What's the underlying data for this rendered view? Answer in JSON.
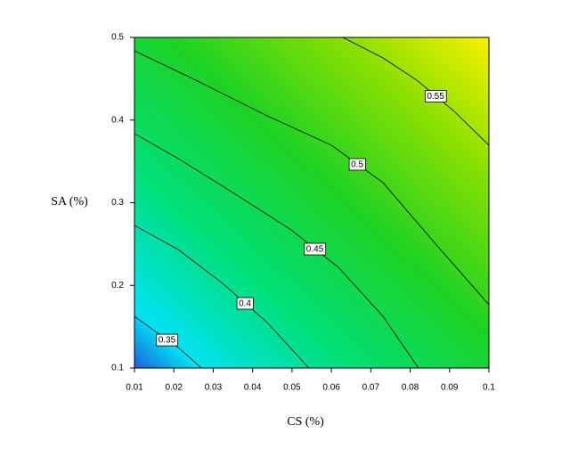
{
  "chart_data": {
    "type": "contour",
    "xlabel": "CS (%)",
    "ylabel": "SA (%)",
    "xlim": [
      0.01,
      0.1
    ],
    "ylim": [
      0.1,
      0.5
    ],
    "xticks": [
      0.01,
      0.02,
      0.03,
      0.04,
      0.05,
      0.06,
      0.07,
      0.08,
      0.09,
      0.1
    ],
    "yticks": [
      0.1,
      0.2,
      0.3,
      0.4,
      0.5
    ],
    "contours": [
      {
        "level": 0.35,
        "x": [
          0.01,
          0.0154,
          0.0211,
          0.027
        ],
        "y": [
          0.1625,
          0.144,
          0.1248,
          0.1
        ]
      },
      {
        "level": 0.4,
        "x": [
          0.01,
          0.0211,
          0.0324,
          0.0437,
          0.0543
        ],
        "y": [
          0.2725,
          0.2434,
          0.2024,
          0.155,
          0.1
        ]
      },
      {
        "level": 0.45,
        "x": [
          0.01,
          0.0211,
          0.0346,
          0.0498,
          0.0618,
          0.0731,
          0.0821
        ],
        "y": [
          0.3836,
          0.3534,
          0.3135,
          0.2671,
          0.2218,
          0.1625,
          0.1
        ]
      },
      {
        "level": 0.5,
        "x": [
          0.01,
          0.0256,
          0.0437,
          0.06,
          0.0731,
          0.0867,
          0.1
        ],
        "y": [
          0.4838,
          0.4482,
          0.4051,
          0.3696,
          0.3243,
          0.2488,
          0.1766
        ]
      },
      {
        "level": 0.55,
        "x": [
          0.0629,
          0.0731,
          0.0817,
          0.0912,
          0.1
        ],
        "y": [
          0.5,
          0.4752,
          0.4482,
          0.4105,
          0.3695
        ]
      }
    ]
  }
}
